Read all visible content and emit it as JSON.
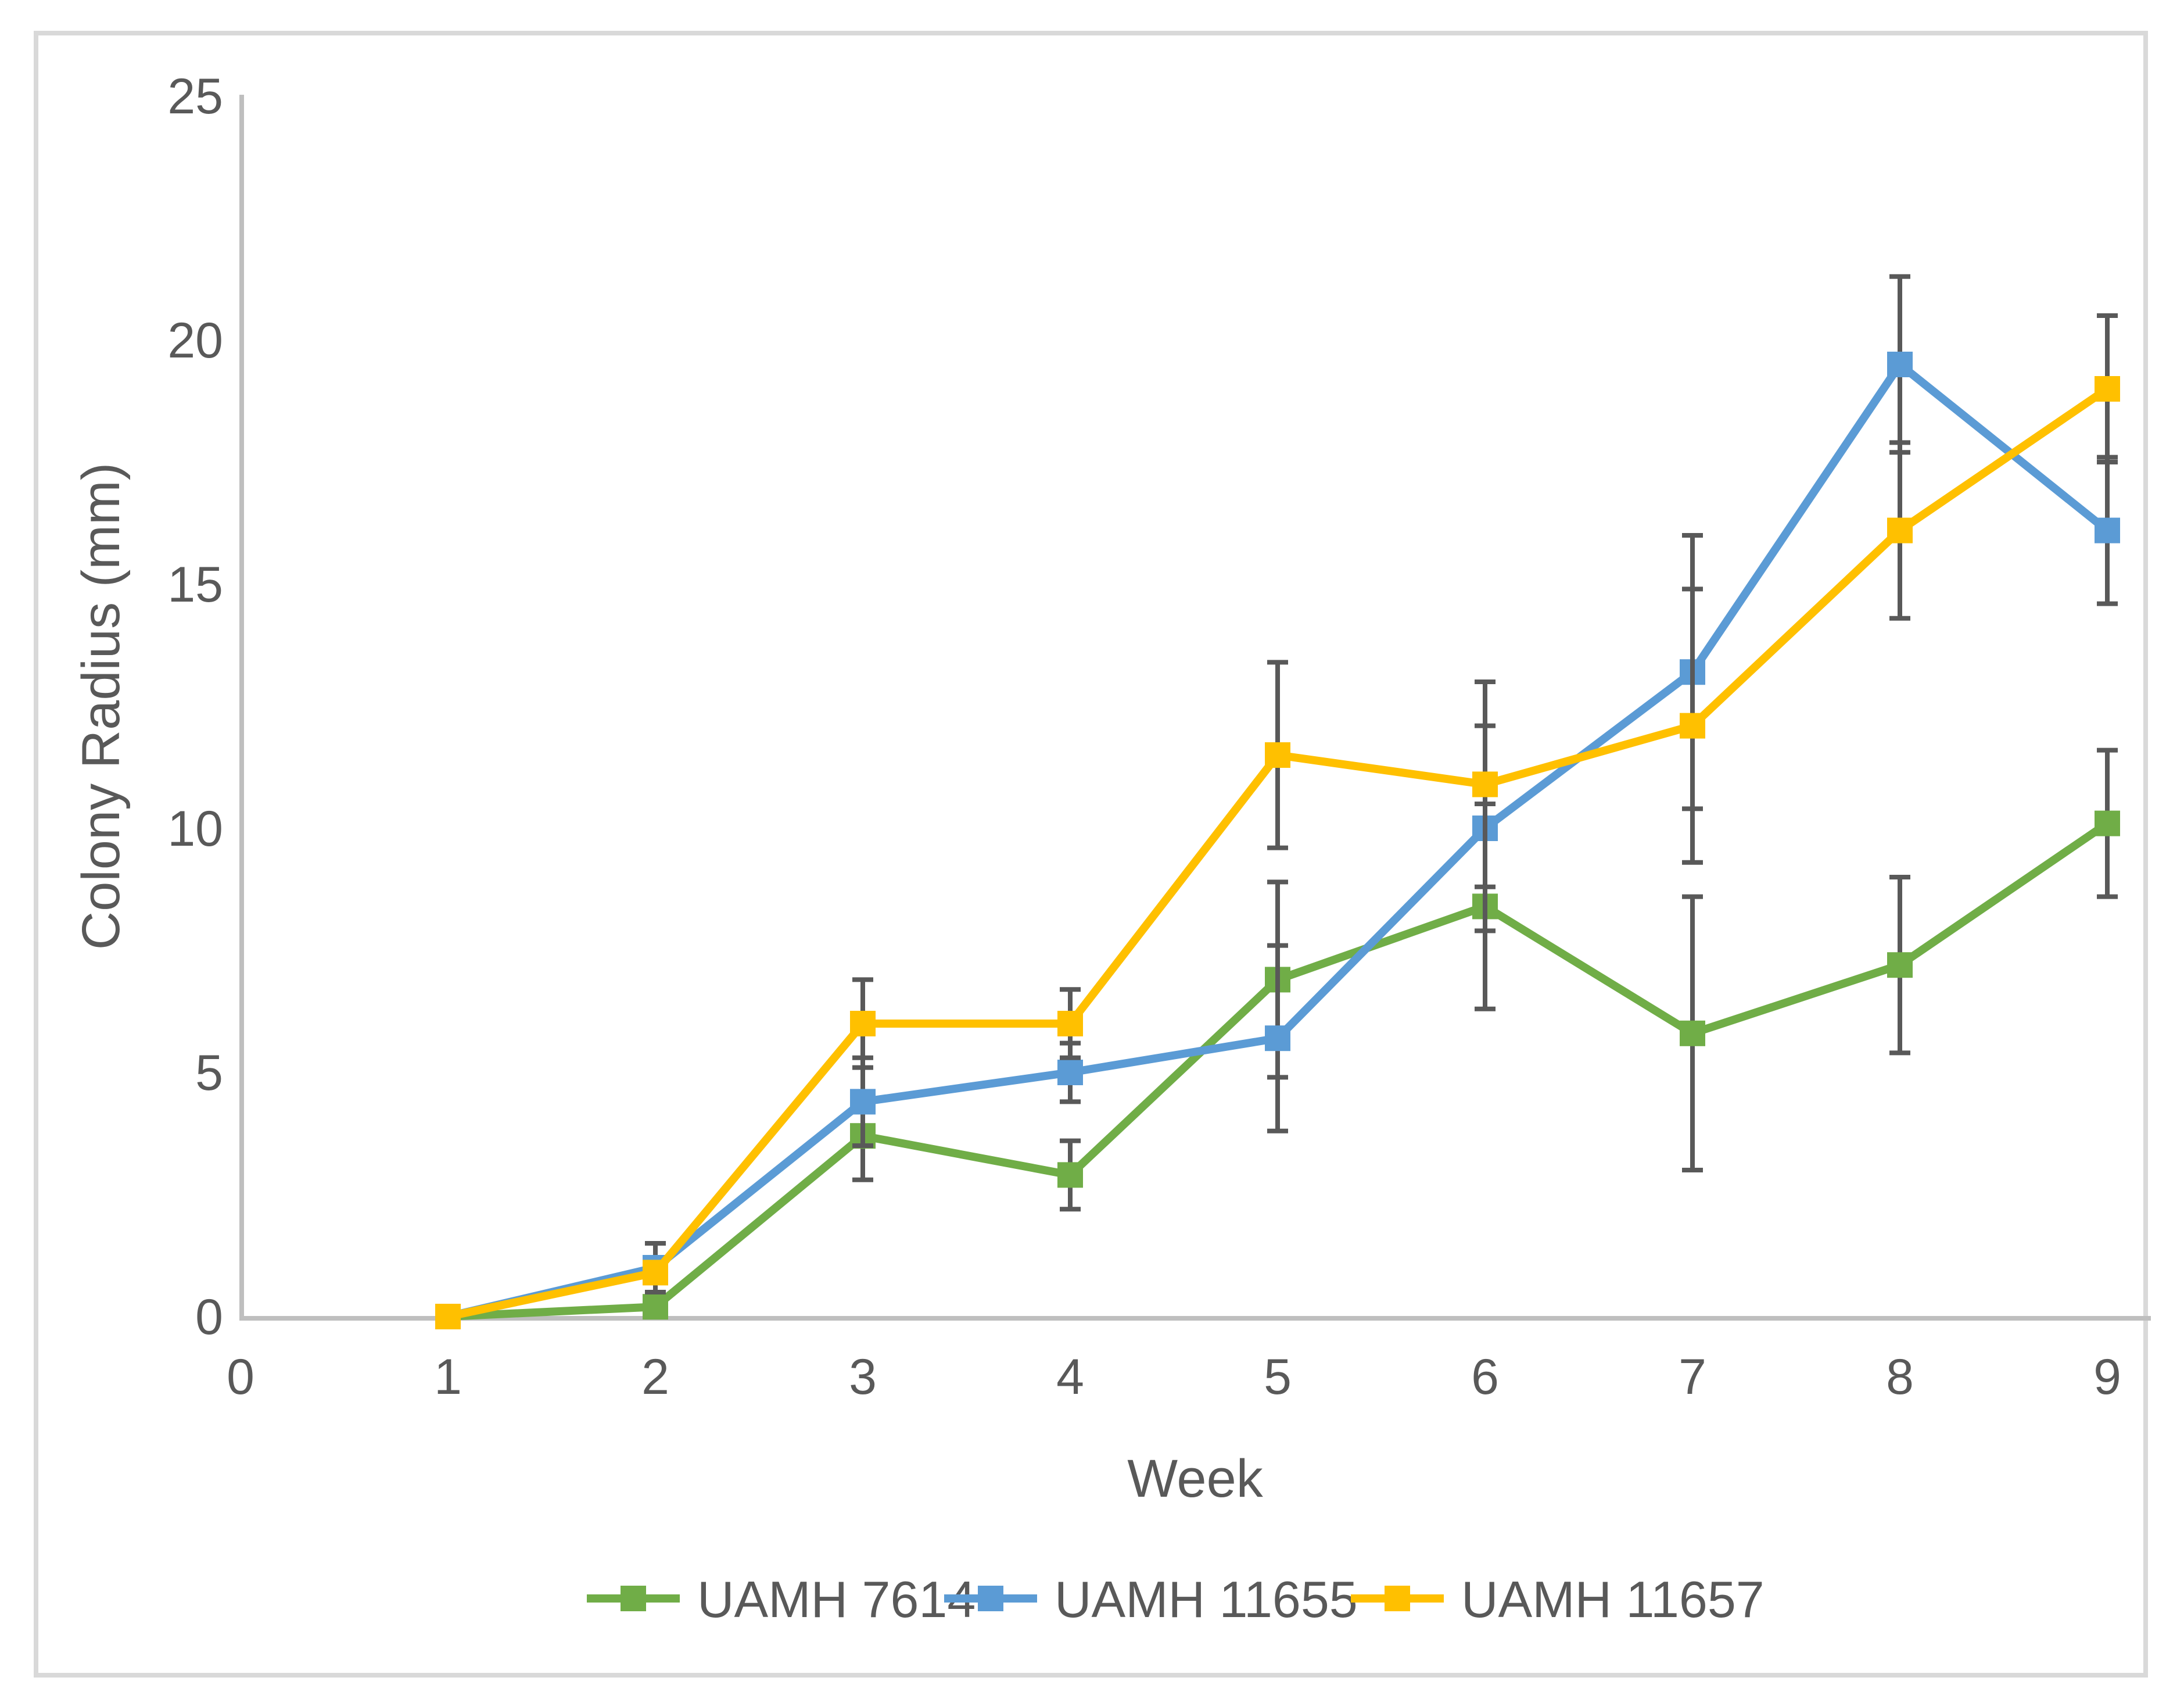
{
  "chart_data": {
    "type": "line",
    "title": "",
    "xlabel": "Week",
    "ylabel": "Colony Radius (mm)",
    "x": [
      1,
      2,
      3,
      4,
      5,
      6,
      7,
      8,
      9
    ],
    "x_ticks": [
      0,
      1,
      2,
      3,
      4,
      5,
      6,
      7,
      8,
      9
    ],
    "y_ticks": [
      0,
      5,
      10,
      15,
      20,
      25
    ],
    "xlim": [
      0,
      9.2
    ],
    "ylim": [
      0,
      25
    ],
    "grid": false,
    "legend_position": "bottom",
    "series": [
      {
        "name": "UAMH 7614",
        "color": "#70AD47",
        "values": [
          0,
          0.2,
          3.7,
          2.9,
          6.9,
          8.4,
          5.8,
          7.2,
          10.1
        ],
        "errors": [
          0,
          0,
          0.9,
          0.7,
          2.0,
          2.1,
          2.8,
          1.8,
          1.5
        ]
      },
      {
        "name": "UAMH 11655",
        "color": "#5B9BD5",
        "values": [
          0,
          1.0,
          4.4,
          5.0,
          5.7,
          10.0,
          13.2,
          19.5,
          16.1
        ],
        "errors": [
          0,
          0.5,
          0.9,
          0.6,
          1.9,
          2.1,
          2.8,
          1.8,
          1.5
        ]
      },
      {
        "name": "UAMH 11657",
        "color": "#FFC000",
        "values": [
          0,
          0.9,
          6.0,
          6.0,
          11.5,
          10.9,
          12.1,
          16.1,
          19.0
        ],
        "errors": [
          0,
          0,
          0.9,
          0.7,
          1.9,
          2.1,
          2.8,
          1.8,
          1.5
        ]
      }
    ],
    "colors": {
      "error_bar": "#595959",
      "axis_line": "#BFBFBF",
      "text": "#595959",
      "border": "#D9D9D9",
      "background": "#FFFFFF"
    }
  }
}
